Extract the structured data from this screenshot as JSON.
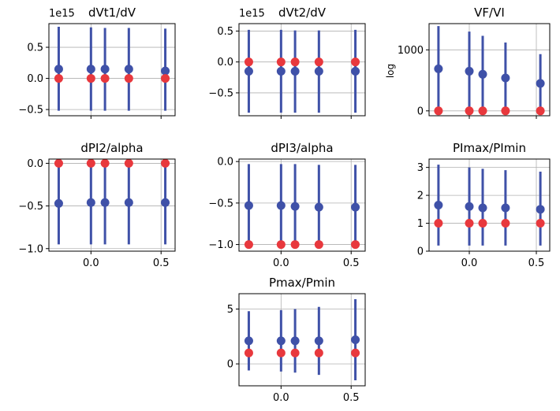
{
  "chart_data": [
    {
      "type": "scatter",
      "title": "dVt1/dV",
      "offset_label": "1e15",
      "ylabel": "",
      "x": [
        -0.23,
        0.0,
        0.1,
        0.27,
        0.53
      ],
      "xlim": [
        -0.3,
        0.6
      ],
      "xticks": [],
      "ylim": [
        -0.6,
        0.88
      ],
      "yticks": [
        {
          "v": 0.5,
          "label": "0.5"
        },
        {
          "v": 0.0,
          "label": "0.0"
        },
        {
          "v": -0.5,
          "label": "−0.5"
        }
      ],
      "series": [
        {
          "color": "#3f51a8",
          "values": [
            0.15,
            0.15,
            0.15,
            0.15,
            0.12
          ],
          "errors": [
            [
              -0.52,
              0.83
            ],
            [
              -0.52,
              0.82
            ],
            [
              -0.52,
              0.81
            ],
            [
              -0.52,
              0.81
            ],
            [
              -0.52,
              0.8
            ]
          ]
        },
        {
          "color": "#e8383d",
          "values": [
            0.0,
            0.0,
            0.0,
            0.0,
            0.0
          ]
        }
      ]
    },
    {
      "type": "scatter",
      "title": "dVt2/dV",
      "offset_label": "1e15",
      "ylabel": "",
      "x": [
        -0.23,
        0.0,
        0.1,
        0.27,
        0.53
      ],
      "xlim": [
        -0.3,
        0.6
      ],
      "xticks": [],
      "ylim": [
        -0.87,
        0.62
      ],
      "yticks": [
        {
          "v": 0.5,
          "label": "0.5"
        },
        {
          "v": 0.0,
          "label": "0.0"
        },
        {
          "v": -0.5,
          "label": "−0.5"
        }
      ],
      "series": [
        {
          "color": "#3f51a8",
          "values": [
            -0.15,
            -0.15,
            -0.15,
            -0.15,
            -0.15
          ],
          "errors": [
            [
              -0.82,
              0.52
            ],
            [
              -0.82,
              0.52
            ],
            [
              -0.82,
              0.51
            ],
            [
              -0.82,
              0.51
            ],
            [
              -0.82,
              0.52
            ]
          ]
        },
        {
          "color": "#e8383d",
          "values": [
            0.0,
            0.0,
            0.0,
            0.0,
            0.0
          ]
        }
      ]
    },
    {
      "type": "scatter",
      "title": "VF/VI",
      "offset_label": "",
      "ylabel": "log",
      "x": [
        -0.23,
        0.0,
        0.1,
        0.27,
        0.53
      ],
      "xlim": [
        -0.3,
        0.6
      ],
      "xticks": [],
      "ylim": [
        -80,
        1430
      ],
      "yticks": [
        {
          "v": 1000,
          "label": "1000"
        },
        {
          "v": 0,
          "label": "0"
        }
      ],
      "series": [
        {
          "color": "#3f51a8",
          "values": [
            690,
            650,
            600,
            540,
            450
          ],
          "errors": [
            [
              0,
              1390
            ],
            [
              0,
              1300
            ],
            [
              0,
              1230
            ],
            [
              0,
              1120
            ],
            [
              0,
              930
            ]
          ]
        },
        {
          "color": "#e8383d",
          "values": [
            0,
            0,
            0,
            0,
            0
          ]
        }
      ]
    },
    {
      "type": "scatter",
      "title": "dPI2/alpha",
      "offset_label": "",
      "ylabel": "",
      "x": [
        -0.23,
        0.0,
        0.1,
        0.27,
        0.53
      ],
      "xlim": [
        -0.3,
        0.6
      ],
      "xticks": [
        {
          "v": 0.0,
          "label": "0.0"
        },
        {
          "v": 0.5,
          "label": "0.5"
        }
      ],
      "ylim": [
        -1.03,
        0.05
      ],
      "yticks": [
        {
          "v": 0.0,
          "label": "0.0"
        },
        {
          "v": -0.5,
          "label": "−0.5"
        },
        {
          "v": -1.0,
          "label": "−1.0"
        }
      ],
      "series": [
        {
          "color": "#3f51a8",
          "values": [
            -0.47,
            -0.46,
            -0.46,
            -0.46,
            -0.46
          ],
          "errors": [
            [
              -0.95,
              0.0
            ],
            [
              -0.95,
              0.0
            ],
            [
              -0.95,
              0.0
            ],
            [
              -0.95,
              0.0
            ],
            [
              -0.95,
              0.0
            ]
          ]
        },
        {
          "color": "#e8383d",
          "values": [
            0.0,
            0.0,
            0.0,
            0.0,
            0.0
          ]
        }
      ]
    },
    {
      "type": "scatter",
      "title": "dPI3/alpha",
      "offset_label": "",
      "ylabel": "",
      "x": [
        -0.23,
        0.0,
        0.1,
        0.27,
        0.53
      ],
      "xlim": [
        -0.3,
        0.6
      ],
      "xticks": [
        {
          "v": 0.0,
          "label": "0.0"
        },
        {
          "v": 0.5,
          "label": "0.5"
        }
      ],
      "ylim": [
        -1.08,
        0.03
      ],
      "yticks": [
        {
          "v": 0.0,
          "label": "0.0"
        },
        {
          "v": -0.5,
          "label": "−0.5"
        },
        {
          "v": -1.0,
          "label": "−1.0"
        }
      ],
      "series": [
        {
          "color": "#3f51a8",
          "values": [
            -0.53,
            -0.53,
            -0.54,
            -0.55,
            -0.55
          ],
          "errors": [
            [
              -1.05,
              -0.03
            ],
            [
              -1.05,
              -0.03
            ],
            [
              -1.05,
              -0.03
            ],
            [
              -1.05,
              -0.04
            ],
            [
              -1.05,
              -0.04
            ]
          ]
        },
        {
          "color": "#e8383d",
          "values": [
            -1.0,
            -1.0,
            -1.0,
            -1.0,
            -1.0
          ]
        }
      ]
    },
    {
      "type": "scatter",
      "title": "PImax/PImin",
      "offset_label": "",
      "ylabel": "",
      "x": [
        -0.23,
        0.0,
        0.1,
        0.27,
        0.53
      ],
      "xlim": [
        -0.3,
        0.6
      ],
      "xticks": [
        {
          "v": 0.0,
          "label": "0.0"
        },
        {
          "v": 0.5,
          "label": "0.5"
        }
      ],
      "ylim": [
        0,
        3.3
      ],
      "yticks": [
        {
          "v": 3,
          "label": "3"
        },
        {
          "v": 2,
          "label": "2"
        },
        {
          "v": 1,
          "label": "1"
        },
        {
          "v": 0,
          "label": "0"
        }
      ],
      "series": [
        {
          "color": "#3f51a8",
          "values": [
            1.65,
            1.6,
            1.55,
            1.55,
            1.5
          ],
          "errors": [
            [
              0.2,
              3.1
            ],
            [
              0.2,
              3.0
            ],
            [
              0.2,
              2.95
            ],
            [
              0.2,
              2.9
            ],
            [
              0.2,
              2.85
            ]
          ]
        },
        {
          "color": "#e8383d",
          "values": [
            1.0,
            1.0,
            1.0,
            1.0,
            1.0
          ]
        }
      ]
    },
    {
      "type": "scatter",
      "title": "Pmax/Pmin",
      "offset_label": "",
      "ylabel": "",
      "x": [
        -0.23,
        0.0,
        0.1,
        0.27,
        0.53
      ],
      "xlim": [
        -0.3,
        0.6
      ],
      "xticks": [
        {
          "v": 0.0,
          "label": "0.0"
        },
        {
          "v": 0.5,
          "label": "0.5"
        }
      ],
      "ylim": [
        -2.0,
        6.4
      ],
      "yticks": [
        {
          "v": 5,
          "label": "5"
        },
        {
          "v": 0,
          "label": "0"
        }
      ],
      "series": [
        {
          "color": "#3f51a8",
          "values": [
            2.1,
            2.1,
            2.1,
            2.1,
            2.2
          ],
          "errors": [
            [
              -0.6,
              4.8
            ],
            [
              -0.7,
              4.9
            ],
            [
              -0.8,
              5.0
            ],
            [
              -1.0,
              5.2
            ],
            [
              -1.5,
              5.9
            ]
          ]
        },
        {
          "color": "#e8383d",
          "values": [
            1.0,
            1.0,
            1.0,
            1.0,
            1.0
          ]
        }
      ]
    }
  ]
}
